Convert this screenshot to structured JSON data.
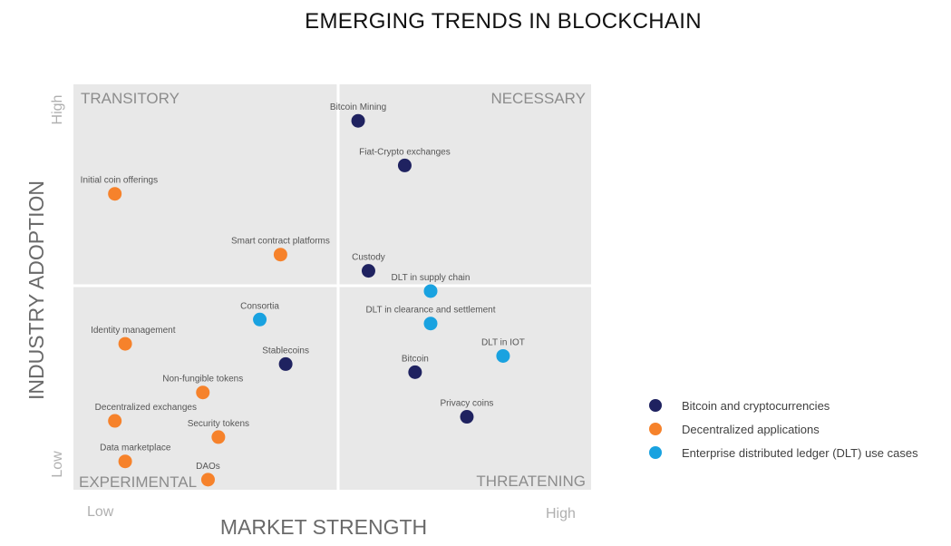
{
  "title": "EMERGING TRENDS IN BLOCKCHAIN",
  "chart_data": {
    "type": "scatter",
    "xlabel": "MARKET STRENGTH",
    "ylabel": "INDUSTRY ADOPTION",
    "x_ticks": {
      "low": "Low",
      "high": "High"
    },
    "y_ticks": {
      "low": "Low",
      "high": "High"
    },
    "xlim": [
      0,
      10
    ],
    "ylim": [
      0,
      10
    ],
    "quadrants": {
      "top_left": "TRANSITORY",
      "top_right": "NECESSARY",
      "bottom_left": "EXPERIMENTAL",
      "bottom_right": "THREATENING"
    },
    "series": [
      {
        "name": "Bitcoin and cryptocurrencies",
        "color": "#1f2260",
        "points": [
          {
            "label": "Bitcoin Mining",
            "x": 5.5,
            "y": 9.1
          },
          {
            "label": "Fiat-Crypto exchanges",
            "x": 6.4,
            "y": 8.0
          },
          {
            "label": "Custody",
            "x": 5.7,
            "y": 5.4
          },
          {
            "label": "Stablecoins",
            "x": 4.1,
            "y": 3.1
          },
          {
            "label": "Bitcoin",
            "x": 6.6,
            "y": 2.9
          },
          {
            "label": "Privacy coins",
            "x": 7.6,
            "y": 1.8
          }
        ]
      },
      {
        "name": "Decentralized applications",
        "color": "#f6822b",
        "points": [
          {
            "label": "Initial coin offerings",
            "x": 0.8,
            "y": 7.3
          },
          {
            "label": "Smart contract platforms",
            "x": 4.0,
            "y": 5.8
          },
          {
            "label": "Identity management",
            "x": 1.0,
            "y": 3.6
          },
          {
            "label": "Non-fungible tokens",
            "x": 2.5,
            "y": 2.4
          },
          {
            "label": "Decentralized exchanges",
            "x": 0.8,
            "y": 1.7
          },
          {
            "label": "Security tokens",
            "x": 2.8,
            "y": 1.3
          },
          {
            "label": "Data marketplace",
            "x": 1.0,
            "y": 0.7
          },
          {
            "label": "DAOs",
            "x": 2.6,
            "y": 0.25
          }
        ]
      },
      {
        "name": "Enterprise distributed ledger (DLT) use cases",
        "color": "#19a2e0",
        "points": [
          {
            "label": "DLT in supply chain",
            "x": 6.9,
            "y": 4.9
          },
          {
            "label": "Consortia",
            "x": 3.6,
            "y": 4.2
          },
          {
            "label": "DLT in clearance and settlement",
            "x": 6.9,
            "y": 4.1
          },
          {
            "label": "DLT in IOT",
            "x": 8.3,
            "y": 3.3
          }
        ]
      }
    ],
    "legend_position": "right"
  }
}
